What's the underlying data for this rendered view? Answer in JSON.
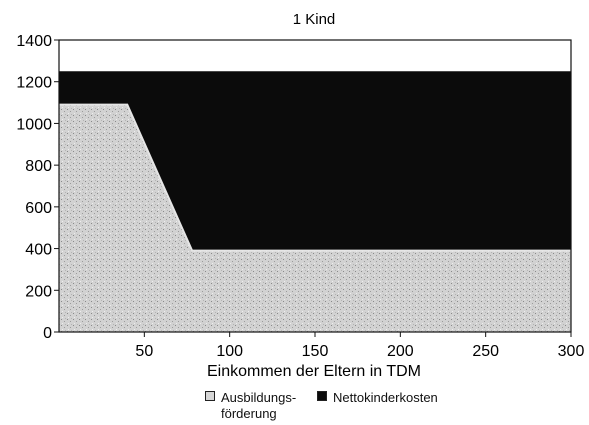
{
  "chart_data": {
    "type": "area",
    "title": "1 Kind",
    "xlabel": "Einkommen der Eltern in TDM",
    "ylabel": "",
    "xlim": [
      0,
      300
    ],
    "ylim": [
      0,
      1400
    ],
    "x_ticks": [
      50,
      100,
      150,
      200,
      250,
      300
    ],
    "y_ticks": [
      0,
      200,
      400,
      600,
      800,
      1000,
      1200,
      1400
    ],
    "stacked": true,
    "x": [
      0,
      40,
      78,
      300
    ],
    "series": [
      {
        "name": "Ausbildungs-förderung",
        "label_lines": [
          "Ausbildungs-",
          "förderung"
        ],
        "values": [
          1090,
          1090,
          390,
          390
        ],
        "color": "#d6d6d6"
      },
      {
        "name": "Nettokinderkosten",
        "label_lines": [
          "Nettokinderkosten"
        ],
        "values": [
          160,
          160,
          860,
          860
        ],
        "color": "#0b0b0b"
      }
    ],
    "grid": false,
    "legend_position": "bottom"
  }
}
